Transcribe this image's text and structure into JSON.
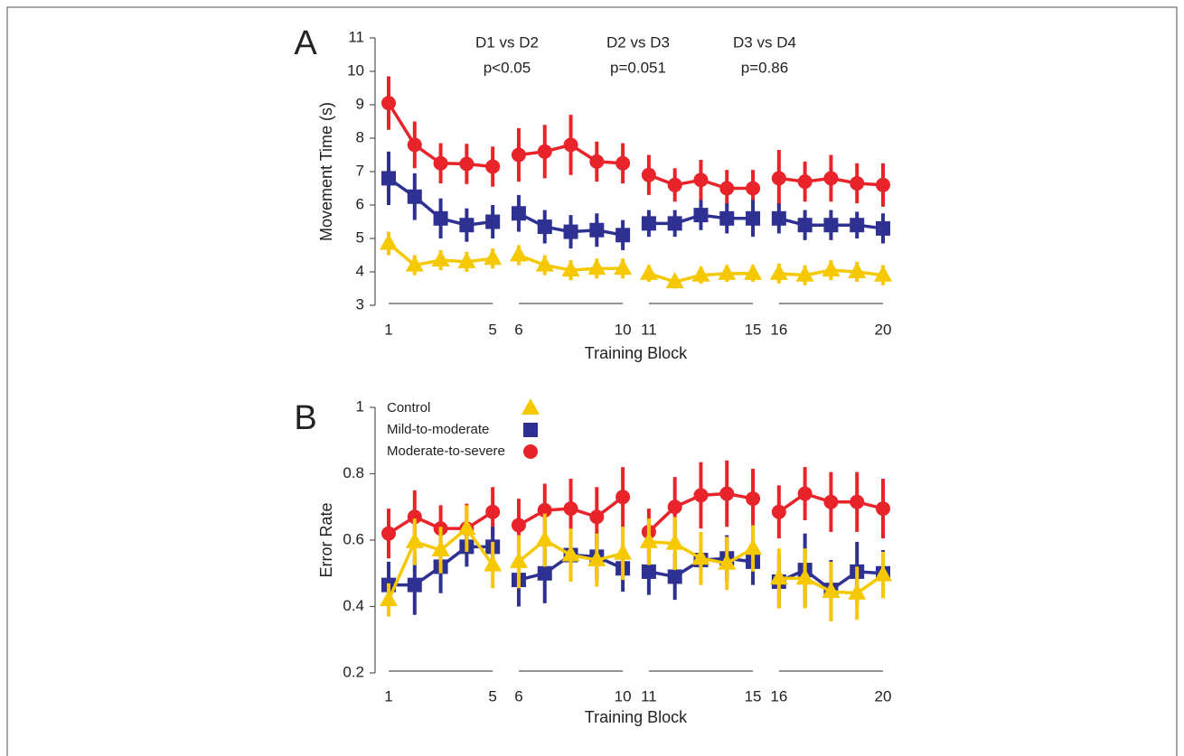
{
  "chart_data": [
    {
      "type": "line",
      "panel": "A",
      "ylabel": "Movement Time (s)",
      "xlabel": "Training Block",
      "x": [
        1,
        2,
        3,
        4,
        5,
        6,
        7,
        8,
        9,
        10,
        11,
        12,
        13,
        14,
        15,
        16,
        17,
        18,
        19,
        20
      ],
      "xlim": [
        1,
        20
      ],
      "xticks": [
        1,
        5,
        6,
        10,
        11,
        15,
        16,
        20
      ],
      "ylim": [
        3,
        11
      ],
      "yticks": [
        3,
        4,
        5,
        6,
        7,
        8,
        9,
        10,
        11
      ],
      "annotations": [
        [
          "D1 vs D2",
          "p<0.05"
        ],
        [
          "D2 vs D3",
          "p=0.051"
        ],
        [
          "D3 vs D4",
          "p=0.86"
        ]
      ],
      "series": [
        {
          "color": "#f5c800",
          "marker": "triangle",
          "values": [
            4.85,
            4.2,
            4.35,
            4.3,
            4.4,
            4.5,
            4.2,
            4.05,
            4.1,
            4.1,
            3.95,
            3.7,
            3.9,
            3.95,
            3.95,
            3.95,
            3.9,
            4.05,
            4.0,
            3.9
          ],
          "errors": [
            0.35,
            0.3,
            0.3,
            0.3,
            0.3,
            0.3,
            0.3,
            0.3,
            0.3,
            0.3,
            0.25,
            0.2,
            0.25,
            0.25,
            0.25,
            0.3,
            0.3,
            0.3,
            0.3,
            0.3
          ]
        },
        {
          "color": "#2e3192",
          "marker": "square",
          "values": [
            6.8,
            6.25,
            5.6,
            5.4,
            5.5,
            5.75,
            5.35,
            5.2,
            5.25,
            5.1,
            5.45,
            5.45,
            5.7,
            5.6,
            5.6,
            5.6,
            5.4,
            5.4,
            5.4,
            5.3
          ],
          "errors": [
            0.8,
            0.7,
            0.6,
            0.5,
            0.5,
            0.55,
            0.5,
            0.5,
            0.5,
            0.45,
            0.4,
            0.4,
            0.45,
            0.45,
            0.55,
            0.45,
            0.45,
            0.45,
            0.4,
            0.45
          ]
        },
        {
          "color": "#e8232a",
          "marker": "circle",
          "values": [
            9.05,
            7.8,
            7.25,
            7.23,
            7.15,
            7.5,
            7.6,
            7.8,
            7.3,
            7.25,
            6.9,
            6.6,
            6.75,
            6.5,
            6.5,
            6.8,
            6.7,
            6.8,
            6.65,
            6.6
          ],
          "errors": [
            0.8,
            0.7,
            0.6,
            0.6,
            0.6,
            0.8,
            0.8,
            0.9,
            0.6,
            0.6,
            0.6,
            0.5,
            0.6,
            0.55,
            0.55,
            0.85,
            0.6,
            0.7,
            0.6,
            0.65
          ]
        }
      ]
    },
    {
      "type": "line",
      "panel": "B",
      "ylabel": "Error Rate",
      "xlabel": "Training Block",
      "legend": "upper left",
      "x": [
        1,
        2,
        3,
        4,
        5,
        6,
        7,
        8,
        9,
        10,
        11,
        12,
        13,
        14,
        15,
        16,
        17,
        18,
        19,
        20
      ],
      "xlim": [
        1,
        20
      ],
      "xticks": [
        1,
        5,
        6,
        10,
        11,
        15,
        16,
        20
      ],
      "ylim": [
        0.2,
        1
      ],
      "yticks": [
        0.2,
        0.4,
        0.6,
        0.8,
        1
      ],
      "series": [
        {
          "name": "Control",
          "color": "#f5c800",
          "marker": "triangle",
          "values": [
            0.42,
            0.595,
            0.57,
            0.635,
            0.525,
            0.535,
            0.6,
            0.555,
            0.54,
            0.56,
            0.595,
            0.59,
            0.545,
            0.53,
            0.575,
            0.485,
            0.485,
            0.445,
            0.44,
            0.495
          ],
          "errors": [
            0.05,
            0.07,
            0.07,
            0.07,
            0.07,
            0.08,
            0.08,
            0.08,
            0.08,
            0.08,
            0.07,
            0.08,
            0.08,
            0.08,
            0.07,
            0.09,
            0.09,
            0.09,
            0.08,
            0.07
          ]
        },
        {
          "name": "Mild-to-moderate",
          "color": "#2e3192",
          "marker": "square",
          "values": [
            0.465,
            0.465,
            0.52,
            0.58,
            0.58,
            0.48,
            0.5,
            0.555,
            0.55,
            0.515,
            0.505,
            0.49,
            0.54,
            0.545,
            0.535,
            0.475,
            0.51,
            0.45,
            0.505,
            0.5
          ],
          "errors": [
            0.07,
            0.09,
            0.08,
            0.06,
            0.06,
            0.08,
            0.09,
            0.07,
            0.07,
            0.07,
            0.07,
            0.07,
            0.07,
            0.07,
            0.07,
            0.08,
            0.11,
            0.09,
            0.09,
            0.07
          ]
        },
        {
          "name": "Moderate-to-severe",
          "color": "#e8232a",
          "marker": "circle",
          "values": [
            0.62,
            0.67,
            0.635,
            0.635,
            0.685,
            0.645,
            0.69,
            0.695,
            0.67,
            0.73,
            0.625,
            0.7,
            0.735,
            0.74,
            0.725,
            0.685,
            0.74,
            0.715,
            0.715,
            0.695
          ],
          "errors": [
            0.075,
            0.08,
            0.07,
            0.075,
            0.075,
            0.08,
            0.08,
            0.09,
            0.09,
            0.09,
            0.07,
            0.09,
            0.1,
            0.1,
            0.09,
            0.08,
            0.08,
            0.09,
            0.09,
            0.09
          ]
        }
      ]
    }
  ]
}
